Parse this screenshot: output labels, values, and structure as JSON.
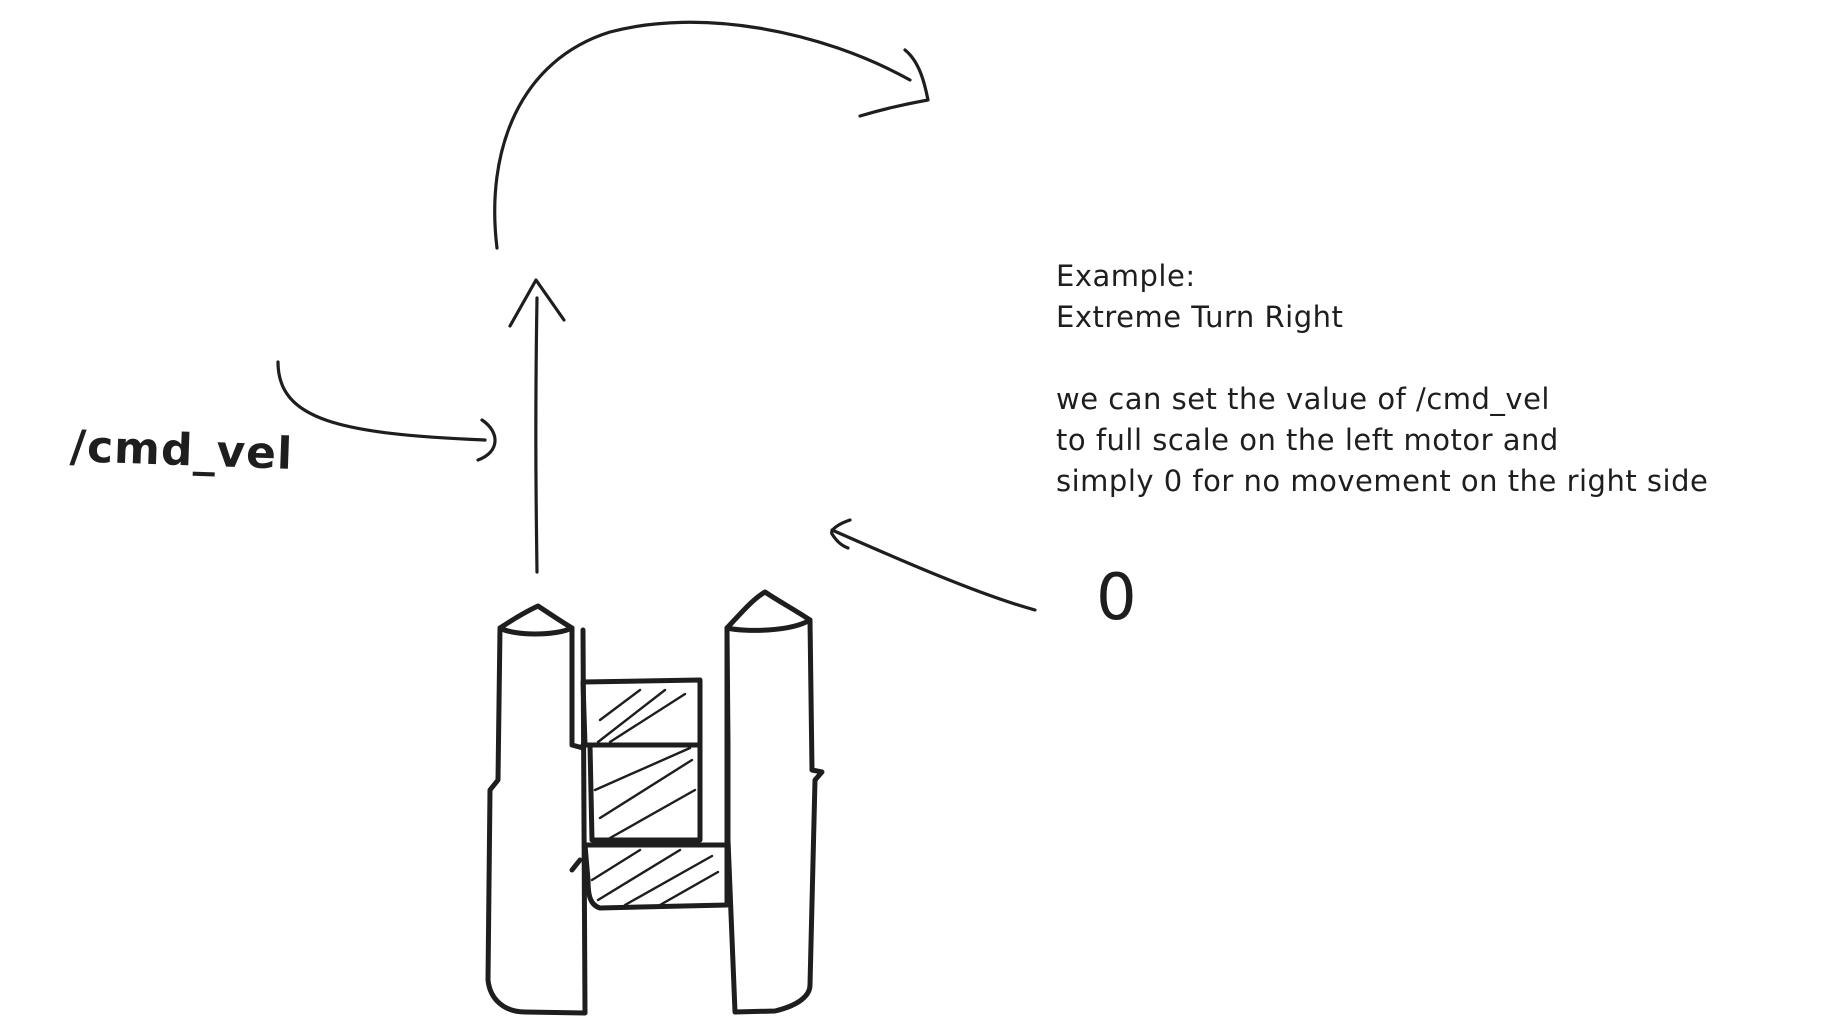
{
  "note": {
    "title": "Example:",
    "subtitle": "Extreme Turn Right",
    "lines": [
      "we can set the value of /cmd_vel",
      "to full scale on the left motor and",
      "simply 0 for no movement on the right side"
    ]
  },
  "topic_label": "/cmd_vel",
  "zero_label": "0"
}
